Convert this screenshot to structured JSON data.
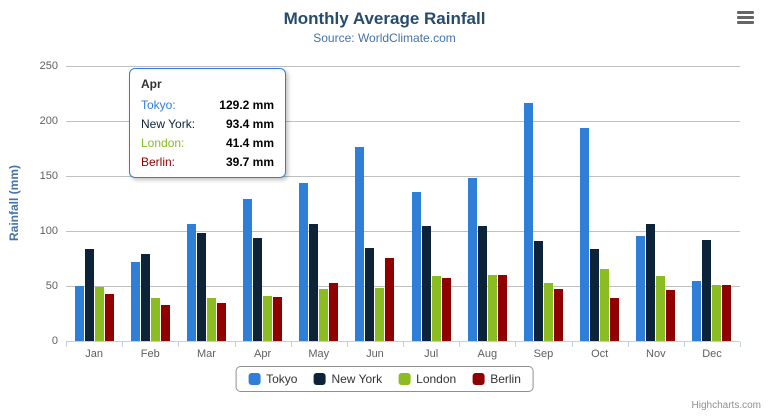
{
  "chart_data": {
    "type": "bar",
    "title": "Monthly Average Rainfall",
    "subtitle": "Source: WorldClimate.com",
    "xlabel": "",
    "ylabel": "Rainfall (mm)",
    "ylim": [
      0,
      250
    ],
    "yticks": [
      0,
      50,
      100,
      150,
      200,
      250
    ],
    "grid": true,
    "legend_position": "bottom-center",
    "categories": [
      "Jan",
      "Feb",
      "Mar",
      "Apr",
      "May",
      "Jun",
      "Jul",
      "Aug",
      "Sep",
      "Oct",
      "Nov",
      "Dec"
    ],
    "series": [
      {
        "name": "Tokyo",
        "color": "#2f7ed8",
        "values": [
          49.9,
          71.5,
          106.4,
          129.2,
          144.0,
          176.0,
          135.6,
          148.5,
          216.4,
          194.1,
          95.6,
          54.4
        ]
      },
      {
        "name": "New York",
        "color": "#0d233a",
        "values": [
          83.6,
          78.8,
          98.5,
          93.4,
          106.0,
          84.5,
          105.0,
          104.3,
          91.2,
          83.5,
          106.6,
          92.3
        ]
      },
      {
        "name": "London",
        "color": "#8bbc21",
        "values": [
          48.9,
          38.8,
          39.3,
          41.4,
          47.0,
          48.3,
          59.0,
          59.6,
          52.4,
          65.2,
          59.3,
          51.2
        ]
      },
      {
        "name": "Berlin",
        "color": "#910000",
        "values": [
          42.4,
          33.2,
          34.5,
          39.7,
          52.6,
          75.5,
          57.4,
          60.4,
          47.6,
          39.1,
          46.8,
          51.1
        ]
      }
    ]
  },
  "tooltip": {
    "header": "Apr",
    "rows": [
      {
        "label": "Tokyo:",
        "value": "129.2 mm",
        "color": "#2f7ed8"
      },
      {
        "label": "New York:",
        "value": "93.4 mm",
        "color": "#0d233a"
      },
      {
        "label": "London:",
        "value": "41.4 mm",
        "color": "#8bbc21"
      },
      {
        "label": "Berlin:",
        "value": "39.7 mm",
        "color": "#910000"
      }
    ]
  },
  "legend": {
    "items": [
      {
        "label": "Tokyo",
        "color": "#2f7ed8"
      },
      {
        "label": "New York",
        "color": "#0d233a"
      },
      {
        "label": "London",
        "color": "#8bbc21"
      },
      {
        "label": "Berlin",
        "color": "#910000"
      }
    ]
  },
  "credits": {
    "text": "Highcharts.com"
  },
  "icons": {
    "context_menu": "hamburger-menu-icon"
  },
  "colors": {
    "title": "#274b6d",
    "subtitle": "#4572a7",
    "axis_label": "#606060",
    "grid_line": "#c0c0c0",
    "axis_line": "#c0d0e0",
    "tooltip_border": "#2f7ed8",
    "legend_border": "#909090"
  }
}
